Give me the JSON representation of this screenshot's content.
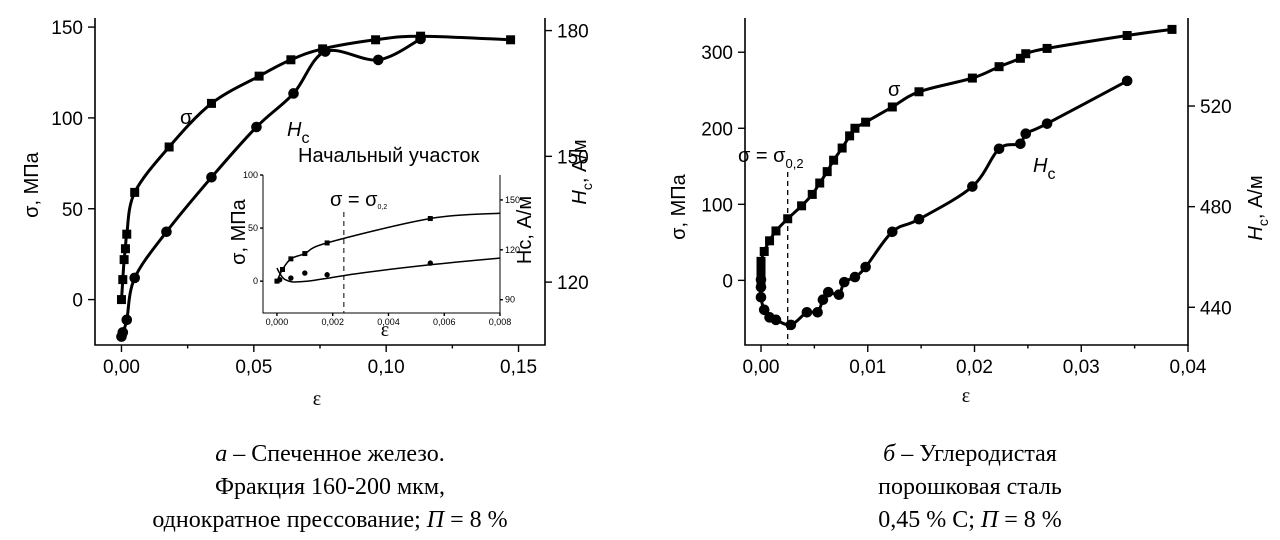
{
  "chart_data": [
    {
      "type": "line",
      "xlabel": "ε",
      "ylabel_left": "σ, МПа",
      "ylabel_right_main": "H",
      "ylabel_right_sub": "c",
      "ylabel_right_unit": ", А/м",
      "xlim": [
        -0.01,
        0.16
      ],
      "ylim_left": [
        -25,
        155
      ],
      "ylim_right": [
        105,
        183
      ],
      "x_ticks": [
        "0,00",
        "0,05",
        "0,10",
        "0,15"
      ],
      "y_ticks_left": [
        "0",
        "50",
        "100",
        "150"
      ],
      "y_ticks_right": [
        "120",
        "150",
        "180"
      ],
      "series": [
        {
          "name": "σ",
          "axis": "left",
          "marker": "square",
          "x": [
            0.0,
            0.0005,
            0.001,
            0.0015,
            0.002,
            0.005,
            0.018,
            0.034,
            0.052,
            0.064,
            0.076,
            0.096,
            0.113,
            0.147
          ],
          "y": [
            0,
            11,
            22,
            28,
            36,
            59,
            84,
            108,
            123,
            132,
            138,
            143,
            145,
            143
          ]
        },
        {
          "name": "Hc",
          "axis": "right",
          "marker": "circle",
          "x": [
            0.0,
            0.0005,
            0.002,
            0.005,
            0.017,
            0.034,
            0.051,
            0.065,
            0.077,
            0.097,
            0.113
          ],
          "y": [
            107,
            108,
            111,
            121,
            132,
            145,
            157,
            165,
            175,
            173,
            178
          ]
        }
      ],
      "series_labels": {
        "sigma": "σ",
        "hc_main": "H",
        "hc_sub": "c"
      },
      "inset": {
        "title": "Начальный участок",
        "xlabel": "ε",
        "ylabel_left": "σ, МПа",
        "ylabel_right": "Hc, А/м",
        "xlim": [
          -0.0005,
          0.008
        ],
        "ylim_left": [
          -30,
          100
        ],
        "ylim_right": [
          82,
          165
        ],
        "x_ticks": [
          "0,000",
          "0,002",
          "0,004",
          "0,006",
          "0,008"
        ],
        "y_ticks_left": [
          "0",
          "50",
          "100"
        ],
        "y_ticks_right": [
          "90",
          "120",
          "150"
        ],
        "annotation_main": "σ = σ",
        "annotation_sub": "0,2",
        "dashed_x": 0.0024,
        "series": [
          {
            "name": "σ",
            "marker": "square",
            "x": [
              0.0,
              0.0002,
              0.0005,
              0.001,
              0.0018,
              0.0055
            ],
            "y": [
              0,
              11,
              21,
              26,
              36,
              59
            ]
          },
          {
            "name": "Hc",
            "marker": "circle",
            "x": [
              0.0001,
              0.0005,
              0.001,
              0.0018,
              0.0055
            ],
            "y": [
              102,
              103,
              106,
              105,
              112
            ]
          }
        ]
      }
    },
    {
      "type": "line",
      "xlabel": "ε",
      "ylabel_left": "σ, МПа",
      "ylabel_right_main": "H",
      "ylabel_right_sub": "c",
      "ylabel_right_unit": ", А/м",
      "xlim": [
        -0.0015,
        0.04
      ],
      "ylim_left": [
        -85,
        345
      ],
      "ylim_right": [
        425,
        555
      ],
      "x_ticks": [
        "0,00",
        "0,01",
        "0,02",
        "0,03",
        "0,04"
      ],
      "y_ticks_left": [
        "0",
        "100",
        "200",
        "300"
      ],
      "y_ticks_right": [
        "440",
        "480",
        "520"
      ],
      "annotation_main": "σ = σ",
      "annotation_sub": "0,2",
      "dashed_x": 0.0025,
      "series": [
        {
          "name": "σ",
          "axis": "left",
          "marker": "square",
          "x": [
            0.0,
            0.0,
            0.0,
            0.0,
            0.0003,
            0.0008,
            0.0014,
            0.0025,
            0.0038,
            0.0048,
            0.0055,
            0.0062,
            0.0068,
            0.0076,
            0.0083,
            0.0088,
            0.0098,
            0.0123,
            0.0148,
            0.0198,
            0.0223,
            0.0243,
            0.0248,
            0.0268,
            0.0343,
            0.0385
          ],
          "y": [
            0,
            10,
            18,
            25,
            38,
            52,
            65,
            81,
            98,
            113,
            128,
            143,
            158,
            174,
            190,
            200,
            208,
            228,
            248,
            266,
            281,
            292,
            298,
            305,
            322,
            330
          ]
        },
        {
          "name": "Hc",
          "axis": "right",
          "marker": "circle",
          "x": [
            0.0,
            0.0,
            0.0,
            0.0003,
            0.0008,
            0.0014,
            0.0028,
            0.0043,
            0.0053,
            0.0058,
            0.0063,
            0.0073,
            0.0078,
            0.0088,
            0.0098,
            0.0123,
            0.0148,
            0.0198,
            0.0223,
            0.0243,
            0.0248,
            0.0268,
            0.0343
          ],
          "y": [
            448,
            451,
            444,
            439,
            436,
            435,
            433,
            438,
            438,
            443,
            446,
            445,
            450,
            452,
            456,
            470,
            475,
            488,
            503,
            505,
            509,
            513,
            530
          ]
        }
      ],
      "series_labels": {
        "sigma": "σ",
        "hc_main": "H",
        "hc_sub": "c"
      }
    }
  ],
  "captions": {
    "a": {
      "letter": "а",
      "line1_rest": " – Спеченное железо.",
      "line2": "Фракция 160-200 мкм,",
      "line3_text": "однократное прессование; ",
      "line3_var": "П",
      "line3_value": " = 8 %"
    },
    "b": {
      "letter": "б",
      "line1_rest": " – Углеродистая",
      "line2": "порошковая сталь",
      "line3_text": "0,45 % С; ",
      "line3_var": "П",
      "line3_value": " = 8 %"
    }
  }
}
